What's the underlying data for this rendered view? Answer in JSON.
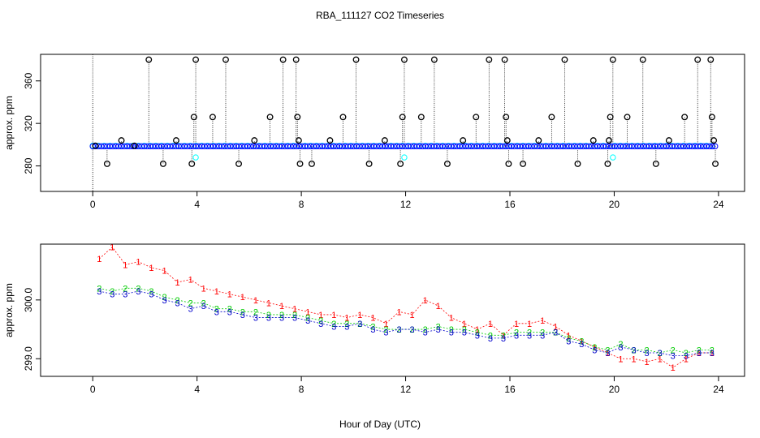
{
  "chart_data": {
    "title": "RBA_111127  CO2 Timeseries",
    "xlabel": "Hour of Day (UTC)",
    "xlim": [
      -2,
      25
    ],
    "xticks": [
      0,
      4,
      8,
      12,
      16,
      20,
      24
    ],
    "xtick_labels": [
      "0",
      "4",
      "8",
      "12",
      "16",
      "20",
      "24"
    ],
    "panels": [
      {
        "type": "scatter",
        "ylabel": "approx. ppm",
        "ylim": [
          256,
          385
        ],
        "yticks": [
          280,
          320,
          360
        ],
        "ytick_labels": [
          "280",
          "320",
          "360"
        ],
        "baseline_series": [
          {
            "name": "blue",
            "color": "#0000ff",
            "value": 298.5,
            "x_start": 0,
            "x_end": 23.9,
            "step": 0.11
          },
          {
            "name": "cyan",
            "color": "#00ffff",
            "value": 299.0,
            "x_start": 0,
            "x_end": 23.9,
            "step": 0.22
          }
        ],
        "cyan_low_points": [
          {
            "x": 3.95,
            "y": 288
          },
          {
            "x": 11.95,
            "y": 288
          },
          {
            "x": 19.95,
            "y": 288
          }
        ],
        "black_points": [
          {
            "x": 0.1,
            "y": 299
          },
          {
            "x": 0.55,
            "y": 282
          },
          {
            "x": 1.1,
            "y": 304
          },
          {
            "x": 1.6,
            "y": 299
          },
          {
            "x": 2.15,
            "y": 380
          },
          {
            "x": 2.7,
            "y": 282
          },
          {
            "x": 3.2,
            "y": 304
          },
          {
            "x": 3.8,
            "y": 282
          },
          {
            "x": 3.88,
            "y": 326
          },
          {
            "x": 3.95,
            "y": 380
          },
          {
            "x": 4.6,
            "y": 326
          },
          {
            "x": 5.1,
            "y": 380
          },
          {
            "x": 5.6,
            "y": 282
          },
          {
            "x": 6.2,
            "y": 304
          },
          {
            "x": 6.8,
            "y": 326
          },
          {
            "x": 7.3,
            "y": 380
          },
          {
            "x": 7.8,
            "y": 380
          },
          {
            "x": 7.85,
            "y": 326
          },
          {
            "x": 7.9,
            "y": 304
          },
          {
            "x": 7.95,
            "y": 282
          },
          {
            "x": 8.4,
            "y": 282
          },
          {
            "x": 9.1,
            "y": 304
          },
          {
            "x": 9.6,
            "y": 326
          },
          {
            "x": 10.1,
            "y": 380
          },
          {
            "x": 10.6,
            "y": 282
          },
          {
            "x": 11.2,
            "y": 304
          },
          {
            "x": 11.8,
            "y": 282
          },
          {
            "x": 11.88,
            "y": 326
          },
          {
            "x": 11.95,
            "y": 380
          },
          {
            "x": 12.6,
            "y": 326
          },
          {
            "x": 13.1,
            "y": 380
          },
          {
            "x": 13.6,
            "y": 282
          },
          {
            "x": 14.2,
            "y": 304
          },
          {
            "x": 14.7,
            "y": 326
          },
          {
            "x": 15.2,
            "y": 380
          },
          {
            "x": 15.8,
            "y": 380
          },
          {
            "x": 15.85,
            "y": 326
          },
          {
            "x": 15.9,
            "y": 304
          },
          {
            "x": 15.95,
            "y": 282
          },
          {
            "x": 16.5,
            "y": 282
          },
          {
            "x": 17.1,
            "y": 304
          },
          {
            "x": 17.6,
            "y": 326
          },
          {
            "x": 18.1,
            "y": 380
          },
          {
            "x": 18.6,
            "y": 282
          },
          {
            "x": 19.2,
            "y": 304
          },
          {
            "x": 19.75,
            "y": 282
          },
          {
            "x": 19.8,
            "y": 304
          },
          {
            "x": 19.85,
            "y": 326
          },
          {
            "x": 19.95,
            "y": 380
          },
          {
            "x": 20.5,
            "y": 326
          },
          {
            "x": 21.1,
            "y": 380
          },
          {
            "x": 21.6,
            "y": 282
          },
          {
            "x": 22.1,
            "y": 304
          },
          {
            "x": 22.7,
            "y": 326
          },
          {
            "x": 23.2,
            "y": 380
          },
          {
            "x": 23.7,
            "y": 380
          },
          {
            "x": 23.75,
            "y": 326
          },
          {
            "x": 23.82,
            "y": 304
          },
          {
            "x": 23.88,
            "y": 282
          }
        ]
      },
      {
        "type": "line",
        "ylabel": "approx. ppm",
        "ylim": [
          298.7,
          300.95
        ],
        "yticks": [
          299.0,
          300.0
        ],
        "ytick_labels": [
          "299.0",
          "300.0"
        ],
        "series": [
          {
            "name": "1",
            "color": "#ff0000",
            "symbol": "1",
            "x": [
              0.25,
              0.75,
              1.25,
              1.75,
              2.25,
              2.75,
              3.25,
              3.75,
              4.25,
              4.75,
              5.25,
              5.75,
              6.25,
              6.75,
              7.25,
              7.75,
              8.25,
              8.75,
              9.25,
              9.75,
              10.25,
              10.75,
              11.25,
              11.75,
              12.25,
              12.75,
              13.25,
              13.75,
              14.25,
              14.75,
              15.25,
              15.75,
              16.25,
              16.75,
              17.25,
              17.75,
              18.25,
              18.75,
              19.25,
              19.75,
              20.25,
              20.75,
              21.25,
              21.75,
              22.25,
              22.75,
              23.25,
              23.75
            ],
            "y": [
              300.7,
              300.9,
              300.6,
              300.65,
              300.55,
              300.5,
              300.3,
              300.35,
              300.2,
              300.15,
              300.1,
              300.05,
              300.0,
              299.95,
              299.9,
              299.85,
              299.8,
              299.75,
              299.75,
              299.7,
              299.75,
              299.7,
              299.6,
              299.8,
              299.75,
              300.0,
              299.9,
              299.7,
              299.6,
              299.5,
              299.6,
              299.4,
              299.6,
              299.6,
              299.65,
              299.55,
              299.4,
              299.3,
              299.2,
              299.1,
              299.0,
              299.0,
              298.95,
              299.0,
              298.85,
              299.0,
              299.1,
              299.1
            ]
          },
          {
            "name": "2",
            "color": "#00cc00",
            "symbol": "2",
            "x": [
              0.25,
              0.75,
              1.25,
              1.75,
              2.25,
              2.75,
              3.25,
              3.75,
              4.25,
              4.75,
              5.25,
              5.75,
              6.25,
              6.75,
              7.25,
              7.75,
              8.25,
              8.75,
              9.25,
              9.75,
              10.25,
              10.75,
              11.25,
              11.75,
              12.25,
              12.75,
              13.25,
              13.75,
              14.25,
              14.75,
              15.25,
              15.75,
              16.25,
              16.75,
              17.25,
              17.75,
              18.25,
              18.75,
              19.25,
              19.75,
              20.25,
              20.75,
              21.25,
              21.75,
              22.25,
              22.75,
              23.25,
              23.75
            ],
            "y": [
              300.2,
              300.15,
              300.2,
              300.2,
              300.15,
              300.05,
              300.0,
              299.95,
              299.95,
              299.85,
              299.85,
              299.8,
              299.8,
              299.75,
              299.75,
              299.75,
              299.7,
              299.65,
              299.6,
              299.6,
              299.6,
              299.55,
              299.5,
              299.5,
              299.5,
              299.5,
              299.55,
              299.5,
              299.5,
              299.45,
              299.4,
              299.4,
              299.45,
              299.45,
              299.45,
              299.45,
              299.35,
              299.3,
              299.2,
              299.15,
              299.25,
              299.15,
              299.15,
              299.1,
              299.15,
              299.1,
              299.15,
              299.15
            ]
          },
          {
            "name": "3",
            "color": "#0000cc",
            "symbol": "3",
            "x": [
              0.25,
              0.75,
              1.25,
              1.75,
              2.25,
              2.75,
              3.25,
              3.75,
              4.25,
              4.75,
              5.25,
              5.75,
              6.25,
              6.75,
              7.25,
              7.75,
              8.25,
              8.75,
              9.25,
              9.75,
              10.25,
              10.75,
              11.25,
              11.75,
              12.25,
              12.75,
              13.25,
              13.75,
              14.25,
              14.75,
              15.25,
              15.75,
              16.25,
              16.75,
              17.25,
              17.75,
              18.25,
              18.75,
              19.25,
              19.75,
              20.25,
              20.75,
              21.25,
              21.75,
              22.25,
              22.75,
              23.25,
              23.75
            ],
            "y": [
              300.15,
              300.1,
              300.1,
              300.15,
              300.1,
              300.0,
              299.95,
              299.85,
              299.9,
              299.8,
              299.8,
              299.75,
              299.7,
              299.7,
              299.7,
              299.7,
              299.65,
              299.6,
              299.55,
              299.55,
              299.6,
              299.5,
              299.45,
              299.5,
              299.5,
              299.45,
              299.5,
              299.45,
              299.45,
              299.4,
              299.35,
              299.35,
              299.4,
              299.4,
              299.4,
              299.45,
              299.3,
              299.25,
              299.15,
              299.1,
              299.2,
              299.15,
              299.1,
              299.1,
              299.05,
              299.05,
              299.1,
              299.1
            ]
          }
        ]
      }
    ]
  }
}
